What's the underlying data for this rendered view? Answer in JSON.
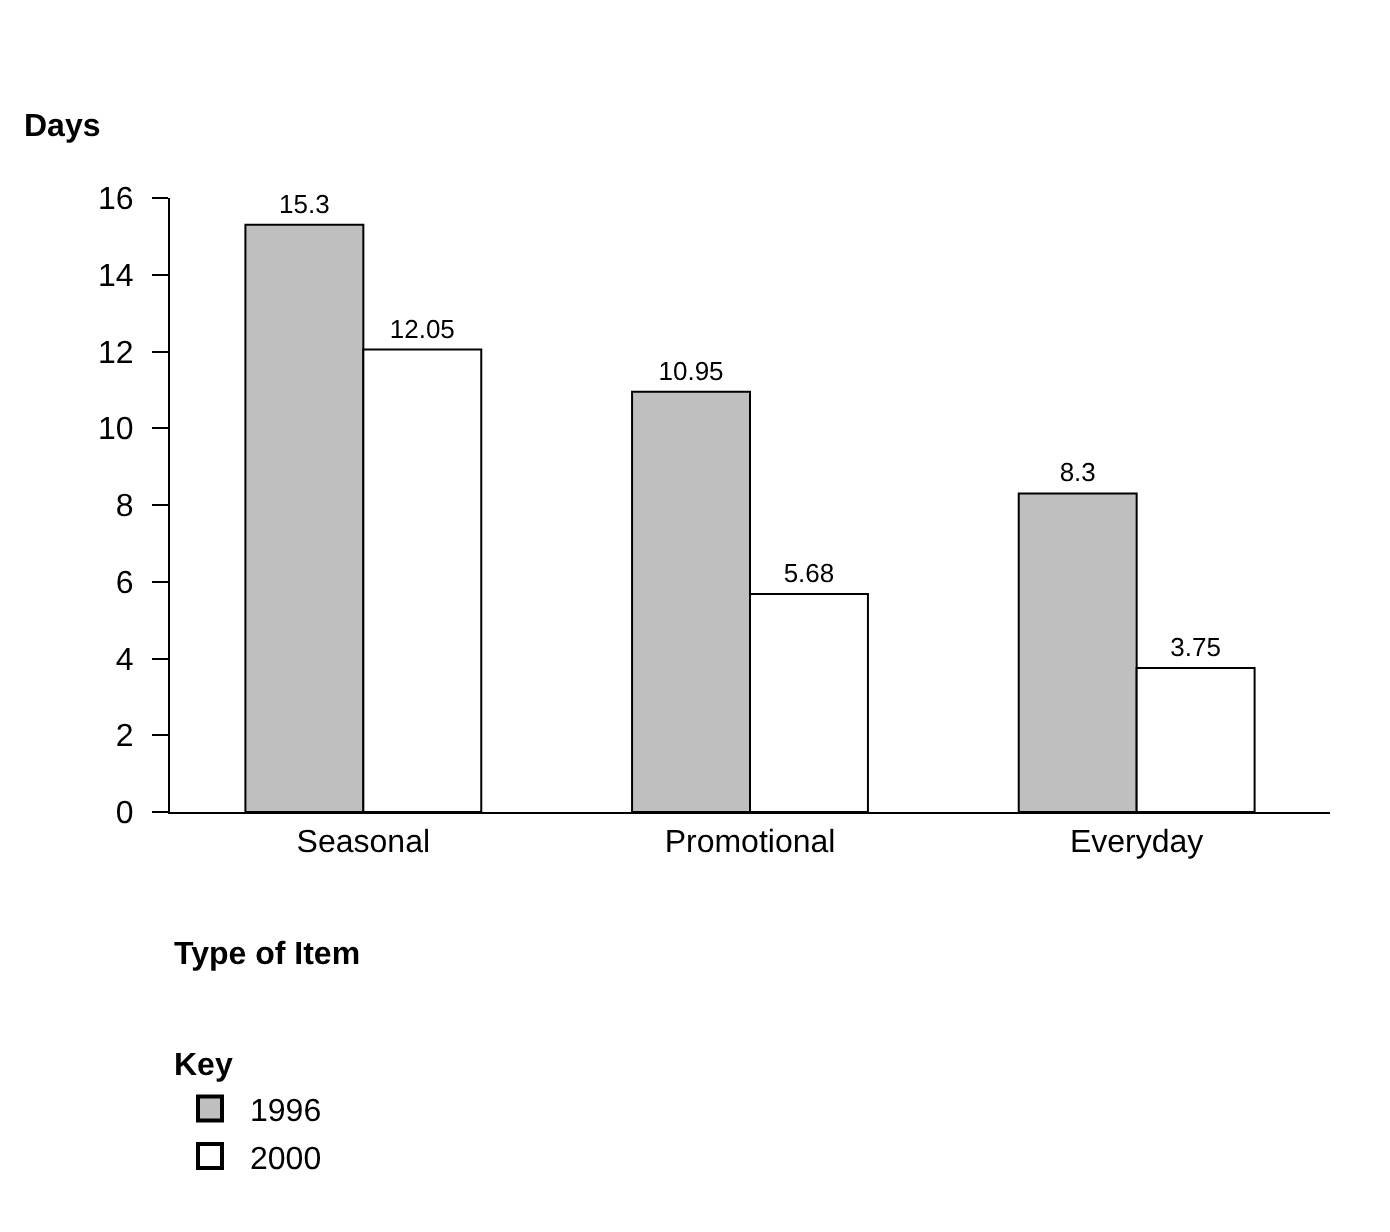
{
  "chart_data": {
    "type": "bar",
    "ylabel": "Days",
    "xlabel": "Type of Item",
    "legend_title": "Key",
    "categories": [
      "Seasonal",
      "Promotional",
      "Everyday"
    ],
    "series": [
      {
        "name": "1996",
        "color": "#bfbfbf",
        "values": [
          15.3,
          10.95,
          8.3
        ]
      },
      {
        "name": "2000",
        "color": "#ffffff",
        "values": [
          12.05,
          5.68,
          3.75
        ]
      }
    ],
    "ylim": [
      0,
      16
    ],
    "yticks": [
      0,
      2,
      4,
      6,
      8,
      10,
      12,
      14,
      16
    ],
    "data_labels": true,
    "grid": false,
    "legend": "bottom left"
  }
}
